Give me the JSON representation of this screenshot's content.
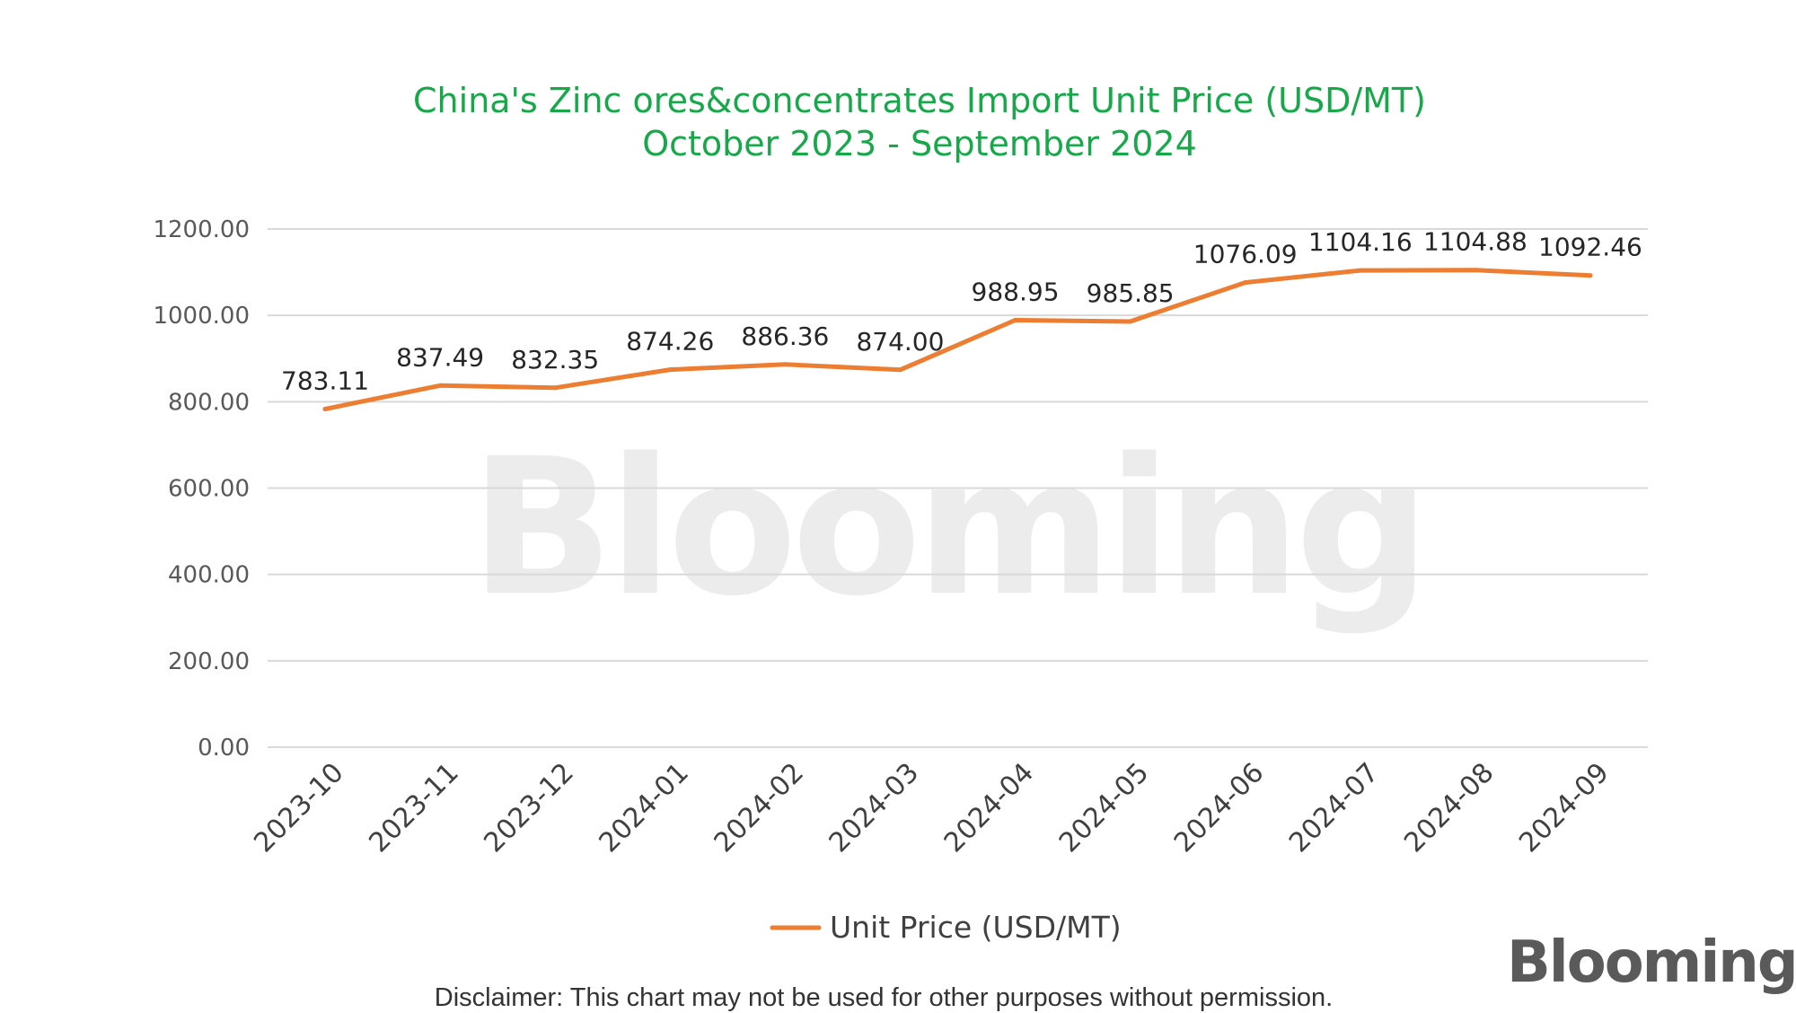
{
  "chart_data": {
    "type": "line",
    "title": "China's Zinc ores&concentrates Import Unit Price (USD/MT)",
    "subtitle": "October 2023 - September 2024",
    "categories": [
      "2023-10",
      "2023-11",
      "2023-12",
      "2024-01",
      "2024-02",
      "2024-03",
      "2024-04",
      "2024-05",
      "2024-06",
      "2024-07",
      "2024-08",
      "2024-09"
    ],
    "series": [
      {
        "name": "Unit Price (USD/MT)",
        "color": "#ed7d31",
        "values": [
          783.11,
          837.49,
          832.35,
          874.26,
          886.36,
          874.0,
          988.95,
          985.85,
          1076.09,
          1104.16,
          1104.88,
          1092.46
        ],
        "labels": [
          "783.11",
          "837.49",
          "832.35",
          "874.26",
          "886.36",
          "874.00",
          "988.95",
          "985.85",
          "1076.09",
          "1104.16",
          "1104.88",
          "1092.46"
        ]
      }
    ],
    "yticks": [
      "0.00",
      "200.00",
      "400.00",
      "600.00",
      "800.00",
      "1000.00",
      "1200.00"
    ],
    "ylim": [
      0,
      1200
    ],
    "grid": true,
    "legend": "bottom"
  },
  "watermark": "Blooming",
  "brand_logo": "Blooming",
  "disclaimer": "Disclaimer: This chart may not be used for other purposes without permission.",
  "colors": {
    "title": "#17a84a",
    "line": "#ed7d31",
    "grid": "#d9d9d9"
  }
}
